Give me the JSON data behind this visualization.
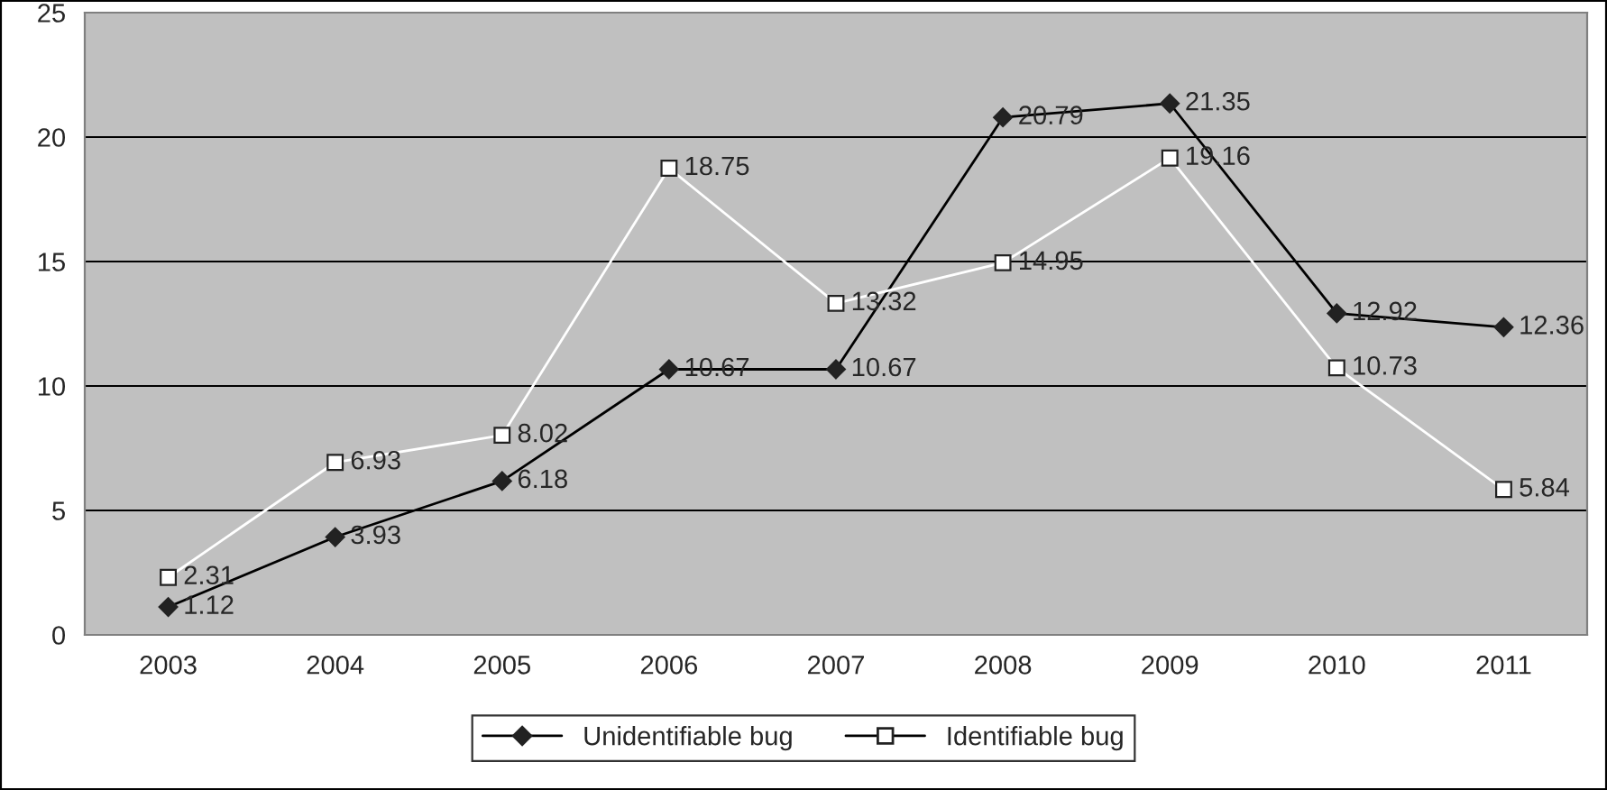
{
  "chart_data": {
    "type": "line",
    "categories": [
      "2003",
      "2004",
      "2005",
      "2006",
      "2007",
      "2008",
      "2009",
      "2010",
      "2011"
    ],
    "series": [
      {
        "name": "Unidentifiable bug",
        "color": "#000000",
        "marker": "diamond",
        "values": [
          1.12,
          3.93,
          6.18,
          10.67,
          10.67,
          20.79,
          21.35,
          12.92,
          12.36
        ]
      },
      {
        "name": "Identifiable bug",
        "color": "#ffffff",
        "marker": "square",
        "values": [
          2.31,
          6.93,
          8.02,
          18.75,
          13.32,
          14.95,
          19.16,
          10.73,
          5.84
        ]
      }
    ],
    "ylim": [
      0,
      25
    ],
    "yticks": [
      0,
      5,
      10,
      15,
      20,
      25
    ],
    "grid": "y",
    "legend": "bottom",
    "data_labels": true
  }
}
